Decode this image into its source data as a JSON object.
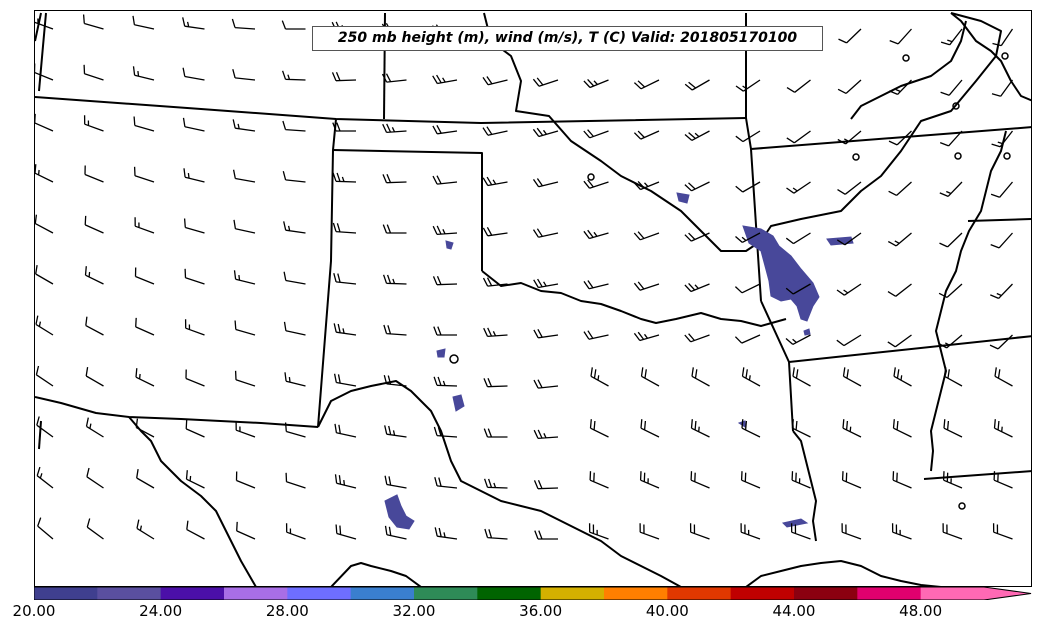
{
  "title": "250 mb height (m), wind (m/s), T (C) Valid: 201805170100",
  "colorbar": {
    "tick_labels": [
      "20.00",
      "24.00",
      "28.00",
      "32.00",
      "36.00",
      "40.00",
      "44.00",
      "48.00"
    ],
    "colors": [
      "#3f3f8f",
      "#5a4f9f",
      "#4b0fa8",
      "#a86ee6",
      "#6e6eff",
      "#3a7fcf",
      "#2e8b57",
      "#006400",
      "#d4b000",
      "#ff7f00",
      "#e03800",
      "#c00000",
      "#8b0010",
      "#e0006e",
      "#ff69b4"
    ],
    "extend": "max"
  },
  "shading_color": "#48489a"
}
